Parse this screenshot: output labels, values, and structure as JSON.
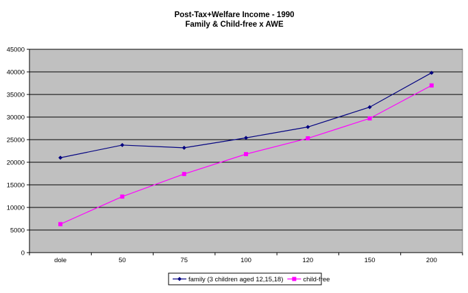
{
  "chart_data": {
    "type": "line",
    "title": "Post-Tax+Welfare Income - 1990",
    "subtitle": "Family & Child-free x AWE",
    "xlabel": "",
    "ylabel": "",
    "categories": [
      "dole",
      "50",
      "75",
      "100",
      "120",
      "150",
      "200"
    ],
    "ylim": [
      0,
      45000
    ],
    "yticks": [
      "0",
      "5000",
      "10000",
      "15000",
      "20000",
      "25000",
      "30000",
      "35000",
      "40000",
      "45000"
    ],
    "grid": true,
    "legend_position": "bottom",
    "series": [
      {
        "name": "family (3 children aged 12,15,18)",
        "color": "#000080",
        "marker": "diamond",
        "values": [
          21000,
          23800,
          23200,
          25400,
          27800,
          32200,
          39800
        ]
      },
      {
        "name": "child-free",
        "color": "#FF00FF",
        "marker": "square",
        "values": [
          6300,
          12400,
          17400,
          21800,
          25300,
          29700,
          37000
        ]
      }
    ],
    "colors": {
      "plot_background": "#C0C0C0",
      "gridline": "#000000"
    }
  }
}
